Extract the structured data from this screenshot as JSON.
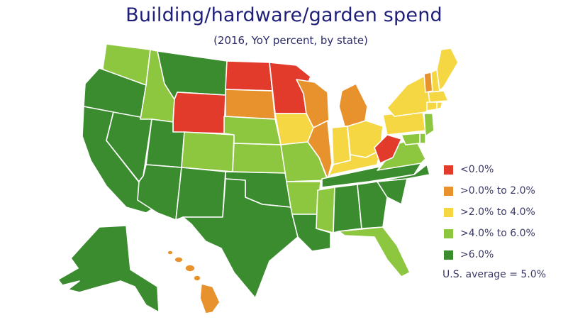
{
  "title": "Building/hardware/garden spend",
  "subtitle": "(2016, YoY percent, by state)",
  "colors": {
    "lt0": "#e23b2c",
    "0to2": "#e8922e",
    "2to4": "#f4d742",
    "4to6": "#8dc63f",
    "gt6": "#3a8c2f"
  },
  "legend": [
    {
      "key": "lt0",
      "label": "<0.0%"
    },
    {
      "key": "0to2",
      "label": ">0.0% to 2.0%"
    },
    {
      "key": "2to4",
      "label": ">2.0% to 4.0%"
    },
    {
      "key": "4to6",
      "label": ">4.0% to 6.0%"
    },
    {
      "key": "gt6",
      "label": ">6.0%"
    }
  ],
  "us_average": "U.S. average = 5.0%",
  "states": {
    "WA": "4to6",
    "OR": "gt6",
    "CA": "gt6",
    "NV": "gt6",
    "ID": "4to6",
    "MT": "gt6",
    "WY": "lt0",
    "UT": "gt6",
    "AZ": "gt6",
    "CO": "4to6",
    "NM": "gt6",
    "ND": "lt0",
    "SD": "0to2",
    "NE": "4to6",
    "KS": "4to6",
    "OK": "gt6",
    "TX": "gt6",
    "MN": "lt0",
    "IA": "2to4",
    "MO": "4to6",
    "AR": "4to6",
    "LA": "gt6",
    "WI": "0to2",
    "IL": "0to2",
    "MI": "0to2",
    "IN": "2to4",
    "OH": "2to4",
    "KY": "2to4",
    "TN": "gt6",
    "MS": "4to6",
    "AL": "gt6",
    "GA": "gt6",
    "FL": "4to6",
    "SC": "gt6",
    "NC": "gt6",
    "VA": "4to6",
    "WV": "lt0",
    "PA": "2to4",
    "NY": "2to4",
    "VT": "0to2",
    "NH": "2to4",
    "ME": "2to4",
    "MA": "2to4",
    "CT": "2to4",
    "RI": "2to4",
    "NJ": "4to6",
    "DE": "4to6",
    "MD": "4to6",
    "AK": "gt6",
    "HI": "0to2"
  }
}
